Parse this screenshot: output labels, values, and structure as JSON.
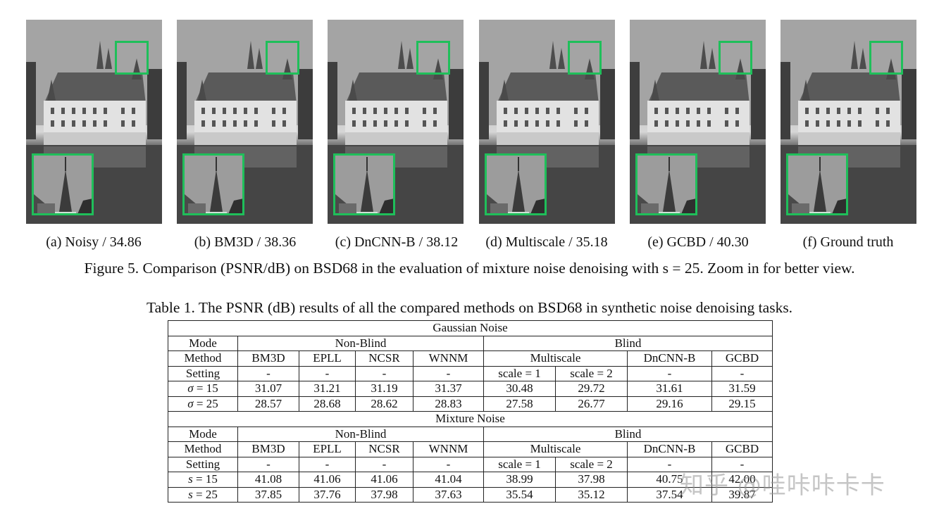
{
  "figure": {
    "panels": [
      {
        "label": "(a)",
        "method": "Noisy",
        "psnr": "34.86",
        "caption": "(a)  Noisy / 34.86"
      },
      {
        "label": "(b)",
        "method": "BM3D",
        "psnr": "38.36",
        "caption": "(b)  BM3D / 38.36"
      },
      {
        "label": "(c)",
        "method": "DnCNN-B",
        "psnr": "38.12",
        "caption": "(c)  DnCNN-B / 38.12"
      },
      {
        "label": "(d)",
        "method": "Multiscale",
        "psnr": "35.18",
        "caption": "(d)  Multiscale / 35.18"
      },
      {
        "label": "(e)",
        "method": "GCBD",
        "psnr": "40.30",
        "caption": "(e)  GCBD / 40.30"
      },
      {
        "label": "(f)",
        "method": "Ground truth",
        "psnr": "",
        "caption": "(f)  Ground truth"
      }
    ],
    "highlight_color": "#1fbf5a",
    "caption": "Figure 5. Comparison (PSNR/dB) on BSD68 in the evaluation of mixture noise denoising with s = 25. Zoom in for better view."
  },
  "table": {
    "caption": "Table 1. The PSNR (dB) results of all the compared methods on BSD68 in synthetic noise denoising tasks.",
    "sections": [
      {
        "title": "Gaussian Noise",
        "mode_label": "Mode",
        "non_blind": "Non-Blind",
        "blind": "Blind",
        "method_label": "Method",
        "methods": [
          "BM3D",
          "EPLL",
          "NCSR",
          "WNNM",
          "Multiscale",
          "DnCNN-B",
          "GCBD"
        ],
        "setting_label": "Setting",
        "settings": [
          "-",
          "-",
          "-",
          "-",
          "scale = 1",
          "scale = 2",
          "-",
          "-"
        ],
        "rows": [
          {
            "label": "σ = 15",
            "values": [
              "31.07",
              "31.21",
              "31.19",
              "31.37",
              "30.48",
              "29.72",
              "31.61",
              "31.59"
            ]
          },
          {
            "label": "σ = 25",
            "values": [
              "28.57",
              "28.68",
              "28.62",
              "28.83",
              "27.58",
              "26.77",
              "29.16",
              "29.15"
            ]
          }
        ]
      },
      {
        "title": "Mixture Noise",
        "mode_label": "Mode",
        "non_blind": "Non-Blind",
        "blind": "Blind",
        "method_label": "Method",
        "methods": [
          "BM3D",
          "EPLL",
          "NCSR",
          "WNNM",
          "Multiscale",
          "DnCNN-B",
          "GCBD"
        ],
        "setting_label": "Setting",
        "settings": [
          "-",
          "-",
          "-",
          "-",
          "scale = 1",
          "scale = 2",
          "-",
          "-"
        ],
        "rows": [
          {
            "label": "s = 15",
            "values": [
              "41.08",
              "41.06",
              "41.06",
              "41.04",
              "38.99",
              "37.98",
              "40.75",
              "42.00"
            ]
          },
          {
            "label": "s = 25",
            "values": [
              "37.85",
              "37.76",
              "37.98",
              "37.63",
              "35.54",
              "35.12",
              "37.54",
              "39.87"
            ]
          }
        ]
      }
    ]
  },
  "watermark": "知乎 @哇咔咔卡卡"
}
